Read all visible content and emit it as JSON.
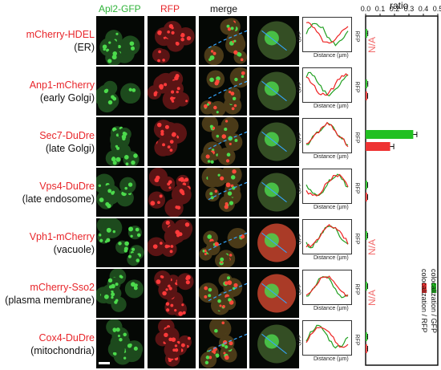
{
  "header": {
    "col1": "Apl2-GFP",
    "col2": "RFP",
    "col3": "merge",
    "col1_color": "#2fb339",
    "col2_color": "#e8262b",
    "col3_color": "#111111"
  },
  "rows": [
    {
      "name": "mCherry-HDEL",
      "loc": "(ER)",
      "na": true
    },
    {
      "name": "Anp1-mCherry",
      "loc": "(early Golgi)",
      "na": false
    },
    {
      "name": "Sec7-DuDre",
      "loc": "(late Golgi)",
      "na": false
    },
    {
      "name": "Vps4-DuDre",
      "loc": "(late endosome)",
      "na": false
    },
    {
      "name": "Vph1-mCherry",
      "loc": "(vacuole)",
      "na": true
    },
    {
      "name": "mCherry-Sso2",
      "loc": "(plasma membrane)",
      "na": true
    },
    {
      "name": "Cox4-DuDre",
      "loc": "(mitochondria)",
      "na": false
    }
  ],
  "profile": {
    "xlabel": "Distance (µm)",
    "left_axis": "GFP",
    "right_axis": "RFP"
  },
  "na_label": "N/A",
  "ratio_axis": {
    "title": "ratio",
    "ticks": [
      "0.0",
      "0.1",
      "0.2",
      "0.3",
      "0.4",
      "0.5"
    ]
  },
  "legend": {
    "green": "colocalization / GFP",
    "red": "colocalization / RFP",
    "green_color": "#22c022",
    "red_color": "#ee3333"
  },
  "chart_data": {
    "type": "bar",
    "orientation": "horizontal",
    "title": "ratio",
    "xlim": [
      0,
      0.5
    ],
    "categories": [
      "mCherry-HDEL",
      "Anp1-mCherry",
      "Sec7-DuDre",
      "Vps4-DuDre",
      "Vph1-mCherry",
      "mCherry-Sso2",
      "Cox4-DuDre"
    ],
    "series": [
      {
        "name": "colocalization / GFP",
        "values": [
          0.01,
          0.01,
          0.33,
          0.01,
          0.01,
          0.01,
          0.01
        ],
        "errors": [
          0.005,
          0.005,
          0.025,
          0.004,
          0.004,
          0.004,
          0.004
        ]
      },
      {
        "name": "colocalization / RFP",
        "values": [
          null,
          0.01,
          0.17,
          0.01,
          null,
          null,
          0.01
        ],
        "errors": [
          null,
          0.004,
          0.025,
          0.004,
          null,
          null,
          0.004
        ]
      }
    ]
  }
}
